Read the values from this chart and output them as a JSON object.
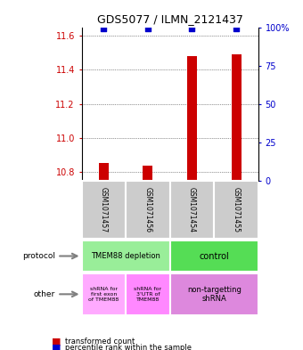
{
  "title": "GDS5077 / ILMN_2121437",
  "samples": [
    "GSM1071457",
    "GSM1071456",
    "GSM1071454",
    "GSM1071455"
  ],
  "transformed_counts": [
    10.855,
    10.835,
    11.48,
    11.49
  ],
  "percentile_ranks": [
    99,
    99,
    99,
    99
  ],
  "ylim_left": [
    10.75,
    11.65
  ],
  "ylim_right": [
    0,
    100
  ],
  "yticks_left": [
    10.8,
    11.0,
    11.2,
    11.4,
    11.6
  ],
  "yticks_right": [
    0,
    25,
    50,
    75,
    100
  ],
  "ytick_labels_right": [
    "0",
    "25",
    "50",
    "75",
    "100%"
  ],
  "bar_color": "#cc0000",
  "dot_color": "#0000cc",
  "protocol_labels": [
    "TMEM88 depletion",
    "control"
  ],
  "protocol_color_1": "#99ee99",
  "protocol_color_2": "#55dd55",
  "other_labels": [
    "shRNA for\nfirst exon\nof TMEM88",
    "shRNA for\n3'UTR of\nTMEM88",
    "non-targetting\nshRNA"
  ],
  "other_color_1": "#ffaaff",
  "other_color_2": "#ff88ff",
  "other_color_3": "#dd88dd",
  "sample_box_color": "#cccccc",
  "baseline": 10.75
}
